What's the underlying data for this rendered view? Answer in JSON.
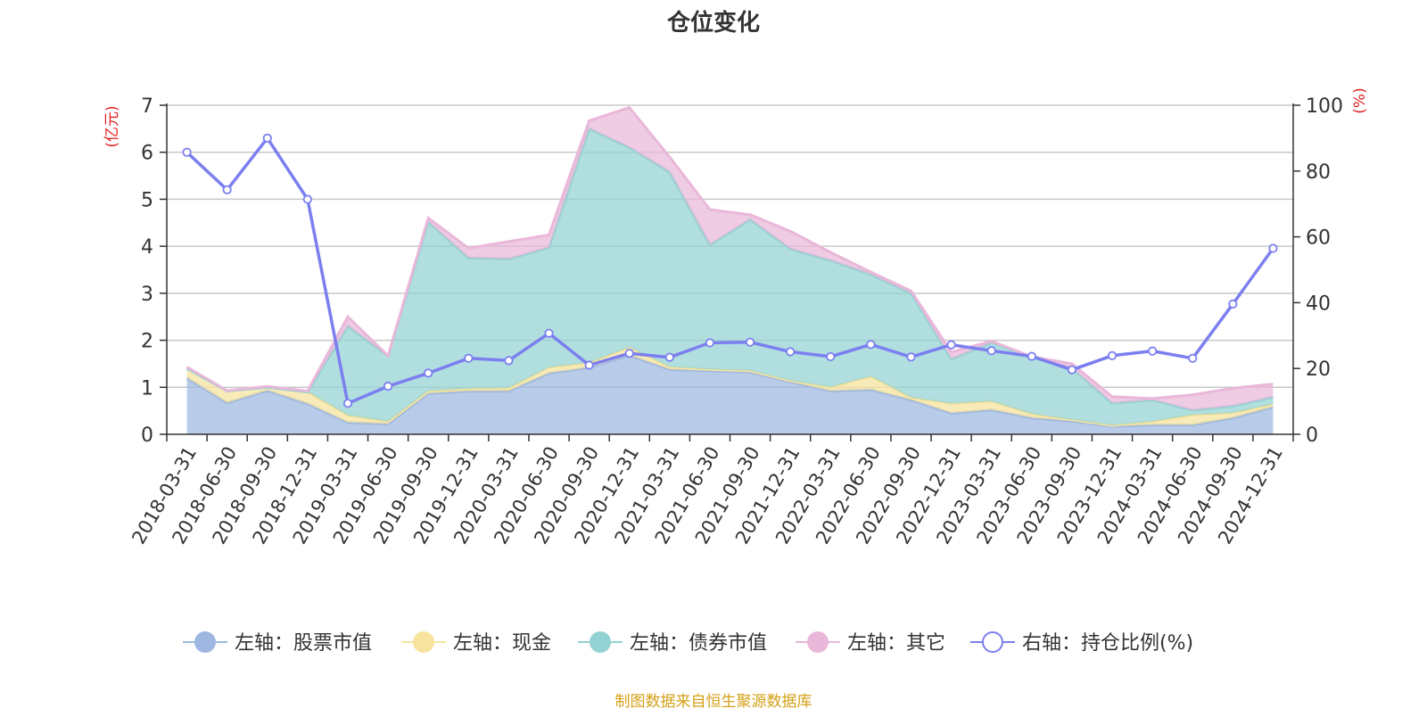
{
  "chart_data": {
    "type": "area",
    "title": "仓位变化",
    "left_axis_unit": "(亿元)",
    "right_axis_unit": "(%)",
    "ylim_left": [
      0,
      7
    ],
    "yticks_left": [
      0,
      1,
      2,
      3,
      4,
      5,
      6,
      7
    ],
    "ylim_right": [
      0,
      100
    ],
    "yticks_right": [
      0,
      20,
      40,
      60,
      80,
      100
    ],
    "categories": [
      "2018-03-31",
      "2018-06-30",
      "2018-09-30",
      "2018-12-31",
      "2019-03-31",
      "2019-06-30",
      "2019-09-30",
      "2019-12-31",
      "2020-03-31",
      "2020-06-30",
      "2020-09-30",
      "2020-12-31",
      "2021-03-31",
      "2021-06-30",
      "2021-09-30",
      "2021-12-31",
      "2022-03-31",
      "2022-06-30",
      "2022-09-30",
      "2022-12-31",
      "2023-03-31",
      "2023-06-30",
      "2023-09-30",
      "2023-12-31",
      "2024-03-31",
      "2024-06-30",
      "2024-09-30",
      "2024-12-31"
    ],
    "series": [
      {
        "name": "左轴：股票市值",
        "axis": "left",
        "kind": "stacked-area",
        "color": "#9db7e0",
        "values": [
          1.2,
          0.67,
          0.93,
          0.65,
          0.25,
          0.22,
          0.87,
          0.92,
          0.92,
          1.3,
          1.42,
          1.68,
          1.38,
          1.35,
          1.32,
          1.12,
          0.92,
          0.95,
          0.73,
          0.45,
          0.52,
          0.35,
          0.28,
          0.17,
          0.2,
          0.2,
          0.35,
          0.58
        ]
      },
      {
        "name": "左轴：现金",
        "axis": "left",
        "kind": "stacked-area",
        "color": "#f7e39d",
        "values": [
          0.2,
          0.25,
          0.07,
          0.25,
          0.15,
          0.05,
          0.05,
          0.05,
          0.06,
          0.12,
          0.1,
          0.17,
          0.05,
          0.03,
          0.03,
          0.02,
          0.08,
          0.28,
          0.05,
          0.2,
          0.18,
          0.08,
          0.03,
          0.02,
          0.07,
          0.21,
          0.1,
          0.06
        ]
      },
      {
        "name": "左轴：债券市值",
        "axis": "left",
        "kind": "stacked-area",
        "color": "#93d2d3",
        "values": [
          0,
          0,
          0,
          0,
          1.9,
          1.4,
          3.6,
          2.78,
          2.75,
          2.55,
          4.98,
          4.25,
          4.15,
          2.65,
          3.22,
          2.8,
          2.7,
          2.17,
          2.22,
          0.95,
          1.25,
          1.2,
          1.1,
          0.47,
          0.46,
          0.1,
          0.15,
          0.15
        ]
      },
      {
        "name": "左轴：其它",
        "axis": "left",
        "kind": "stacked-area",
        "color": "#e9b7d9",
        "values": [
          0.03,
          0.01,
          0.02,
          0.02,
          0.2,
          0,
          0.08,
          0.21,
          0.37,
          0.27,
          0.17,
          0.85,
          0.32,
          0.75,
          0.1,
          0.38,
          0.17,
          0.05,
          0.05,
          0.15,
          0.03,
          0.02,
          0.09,
          0.14,
          0.03,
          0.33,
          0.38,
          0.28
        ]
      },
      {
        "name": "右轴：持仓比例(%)",
        "axis": "right",
        "kind": "line",
        "color": "#7b7ff0",
        "values": [
          85.7,
          74.3,
          90,
          71.4,
          9.4,
          14.6,
          18.6,
          23.1,
          22.4,
          30.7,
          21,
          24.6,
          23.4,
          27.8,
          28,
          25.1,
          23.6,
          27.3,
          23.5,
          27.2,
          25.4,
          23.7,
          19.6,
          23.9,
          25.3,
          23.1,
          39.6,
          56.5
        ]
      }
    ],
    "legend": [
      "左轴：股票市值",
      "左轴：现金",
      "左轴：债券市值",
      "左轴：其它",
      "右轴：持仓比例(%)"
    ],
    "legend_position": "bottom",
    "grid": true
  },
  "footer": {
    "source": "制图数据来自恒生聚源数据库"
  },
  "colors": {
    "title": "#333333",
    "axis": "#333333",
    "grid": "#c8c8c8",
    "unit_red": "#e02020",
    "footer": "#d4a017"
  }
}
